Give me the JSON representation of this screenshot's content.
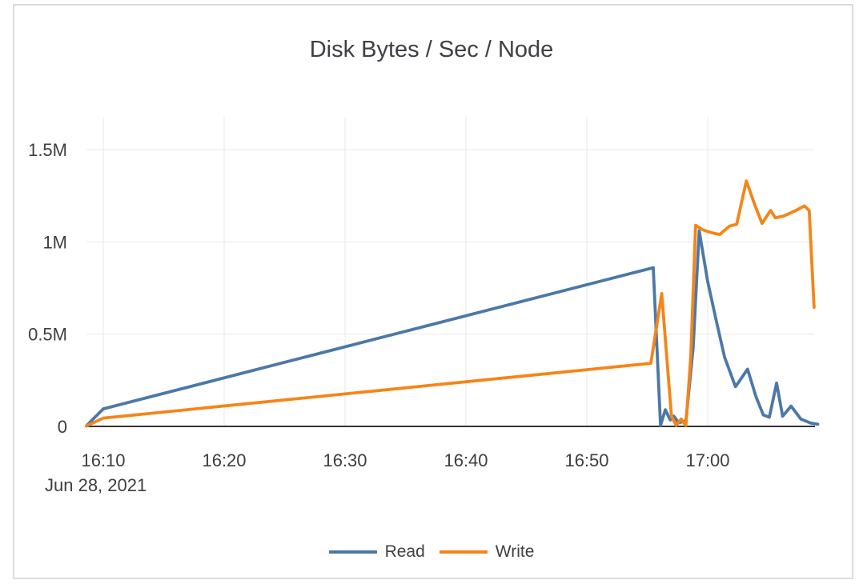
{
  "chart_data": {
    "type": "line",
    "title": "Disk Bytes / Sec / Node",
    "grid": true,
    "legend_position": "bottom",
    "x_axis": {
      "date": "Jun 28, 2021",
      "unit": "minutes after 16:00 (time of day)",
      "range": [
        8.6,
        69.1
      ],
      "ticks": [
        {
          "t": 10,
          "label": "16:10"
        },
        {
          "t": 20,
          "label": "16:20"
        },
        {
          "t": 30,
          "label": "16:30"
        },
        {
          "t": 40,
          "label": "16:40"
        },
        {
          "t": 50,
          "label": "16:50"
        },
        {
          "t": 60,
          "label": "17:00"
        }
      ]
    },
    "y_axis": {
      "unit": "bytes per second",
      "ylim": [
        0,
        1500000
      ],
      "ticks": [
        {
          "v": 0,
          "label": "0"
        },
        {
          "v": 500000,
          "label": "0.5M"
        },
        {
          "v": 1000000,
          "label": "1M"
        },
        {
          "v": 1500000,
          "label": "1.5M"
        }
      ]
    },
    "series": [
      {
        "name": "Read",
        "color": "#4c78a8",
        "points": [
          [
            8.6,
            3000
          ],
          [
            10,
            95000
          ],
          [
            55.5,
            860000
          ],
          [
            56.1,
            5000
          ],
          [
            56.5,
            90000
          ],
          [
            56.9,
            35000
          ],
          [
            57.2,
            55000
          ],
          [
            57.6,
            20000
          ],
          [
            58.2,
            30000
          ],
          [
            58.8,
            430000
          ],
          [
            59.3,
            1060000
          ],
          [
            60.0,
            785000
          ],
          [
            60.7,
            575000
          ],
          [
            61.4,
            375000
          ],
          [
            62.3,
            215000
          ],
          [
            63.3,
            310000
          ],
          [
            64.0,
            160000
          ],
          [
            64.6,
            62000
          ],
          [
            65.1,
            50000
          ],
          [
            65.7,
            235000
          ],
          [
            66.2,
            55000
          ],
          [
            66.9,
            110000
          ],
          [
            67.7,
            40000
          ],
          [
            68.5,
            18000
          ],
          [
            69.1,
            12000
          ]
        ]
      },
      {
        "name": "Write",
        "color": "#f58518",
        "points": [
          [
            8.6,
            2000
          ],
          [
            10,
            45000
          ],
          [
            55.3,
            342000
          ],
          [
            56.2,
            720000
          ],
          [
            57.0,
            56000
          ],
          [
            57.4,
            5000
          ],
          [
            57.8,
            40000
          ],
          [
            58.2,
            5000
          ],
          [
            58.6,
            380000
          ],
          [
            59.0,
            1090000
          ],
          [
            59.6,
            1065000
          ],
          [
            60.3,
            1050000
          ],
          [
            61.0,
            1040000
          ],
          [
            61.8,
            1085000
          ],
          [
            62.4,
            1095000
          ],
          [
            63.2,
            1330000
          ],
          [
            63.9,
            1200000
          ],
          [
            64.5,
            1100000
          ],
          [
            65.2,
            1170000
          ],
          [
            65.6,
            1130000
          ],
          [
            66.3,
            1140000
          ],
          [
            67.3,
            1170000
          ],
          [
            68.0,
            1195000
          ],
          [
            68.4,
            1170000
          ],
          [
            68.8,
            645000
          ]
        ]
      }
    ],
    "style": {
      "grid_color": "#e8e8e8",
      "axis_line_color": "#343434",
      "text_color": "#3e3e3e",
      "panel_border_color": "#dcdce0"
    }
  }
}
